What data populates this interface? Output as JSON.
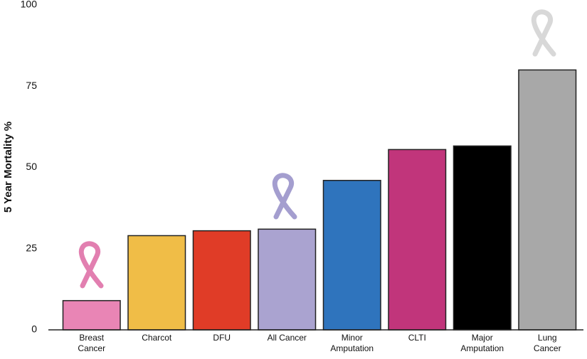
{
  "chart_data": {
    "type": "bar",
    "y_label": "5 Year Mortality %",
    "categories": [
      "Breast\nCancer",
      "Charcot",
      "DFU",
      "All Cancer",
      "Minor\nAmputation",
      "CLTI",
      "Major\nAmputation",
      "Lung\nCancer"
    ],
    "values": [
      9,
      29,
      30.5,
      31,
      46,
      55.5,
      56.6,
      80
    ],
    "colors": [
      "#e985b5",
      "#f0bd47",
      "#e03c27",
      "#aaa3d0",
      "#2f74bd",
      "#c1357b",
      "#000000",
      "#a8a8a8"
    ],
    "ylim": [
      0,
      100
    ],
    "yticks": [
      0,
      25,
      50,
      75,
      100
    ],
    "grid": false
  }
}
